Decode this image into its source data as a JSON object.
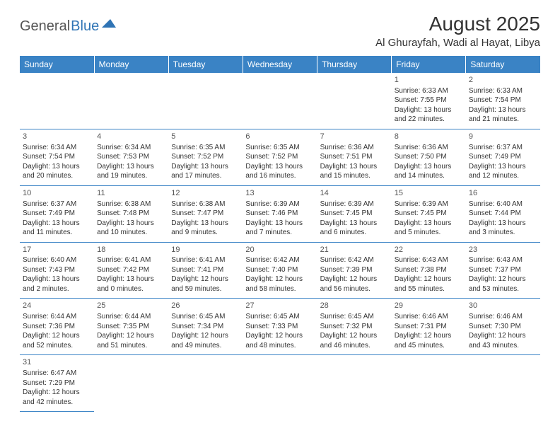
{
  "logo": {
    "word1": "General",
    "word2": "Blue",
    "color1": "#555555",
    "color2": "#2f74b5",
    "triangle_color": "#2f74b5"
  },
  "title": "August 2025",
  "location": "Al Ghurayfah, Wadi al Hayat, Libya",
  "header_bg": "#3a83c5",
  "header_fg": "#ffffff",
  "border_color": "#3a83c5",
  "text_color": "#333333",
  "day_headers": [
    "Sunday",
    "Monday",
    "Tuesday",
    "Wednesday",
    "Thursday",
    "Friday",
    "Saturday"
  ],
  "weeks": [
    [
      null,
      null,
      null,
      null,
      null,
      {
        "d": "1",
        "sr": "Sunrise: 6:33 AM",
        "ss": "Sunset: 7:55 PM",
        "dl1": "Daylight: 13 hours",
        "dl2": "and 22 minutes."
      },
      {
        "d": "2",
        "sr": "Sunrise: 6:33 AM",
        "ss": "Sunset: 7:54 PM",
        "dl1": "Daylight: 13 hours",
        "dl2": "and 21 minutes."
      }
    ],
    [
      {
        "d": "3",
        "sr": "Sunrise: 6:34 AM",
        "ss": "Sunset: 7:54 PM",
        "dl1": "Daylight: 13 hours",
        "dl2": "and 20 minutes."
      },
      {
        "d": "4",
        "sr": "Sunrise: 6:34 AM",
        "ss": "Sunset: 7:53 PM",
        "dl1": "Daylight: 13 hours",
        "dl2": "and 19 minutes."
      },
      {
        "d": "5",
        "sr": "Sunrise: 6:35 AM",
        "ss": "Sunset: 7:52 PM",
        "dl1": "Daylight: 13 hours",
        "dl2": "and 17 minutes."
      },
      {
        "d": "6",
        "sr": "Sunrise: 6:35 AM",
        "ss": "Sunset: 7:52 PM",
        "dl1": "Daylight: 13 hours",
        "dl2": "and 16 minutes."
      },
      {
        "d": "7",
        "sr": "Sunrise: 6:36 AM",
        "ss": "Sunset: 7:51 PM",
        "dl1": "Daylight: 13 hours",
        "dl2": "and 15 minutes."
      },
      {
        "d": "8",
        "sr": "Sunrise: 6:36 AM",
        "ss": "Sunset: 7:50 PM",
        "dl1": "Daylight: 13 hours",
        "dl2": "and 14 minutes."
      },
      {
        "d": "9",
        "sr": "Sunrise: 6:37 AM",
        "ss": "Sunset: 7:49 PM",
        "dl1": "Daylight: 13 hours",
        "dl2": "and 12 minutes."
      }
    ],
    [
      {
        "d": "10",
        "sr": "Sunrise: 6:37 AM",
        "ss": "Sunset: 7:49 PM",
        "dl1": "Daylight: 13 hours",
        "dl2": "and 11 minutes."
      },
      {
        "d": "11",
        "sr": "Sunrise: 6:38 AM",
        "ss": "Sunset: 7:48 PM",
        "dl1": "Daylight: 13 hours",
        "dl2": "and 10 minutes."
      },
      {
        "d": "12",
        "sr": "Sunrise: 6:38 AM",
        "ss": "Sunset: 7:47 PM",
        "dl1": "Daylight: 13 hours",
        "dl2": "and 9 minutes."
      },
      {
        "d": "13",
        "sr": "Sunrise: 6:39 AM",
        "ss": "Sunset: 7:46 PM",
        "dl1": "Daylight: 13 hours",
        "dl2": "and 7 minutes."
      },
      {
        "d": "14",
        "sr": "Sunrise: 6:39 AM",
        "ss": "Sunset: 7:45 PM",
        "dl1": "Daylight: 13 hours",
        "dl2": "and 6 minutes."
      },
      {
        "d": "15",
        "sr": "Sunrise: 6:39 AM",
        "ss": "Sunset: 7:45 PM",
        "dl1": "Daylight: 13 hours",
        "dl2": "and 5 minutes."
      },
      {
        "d": "16",
        "sr": "Sunrise: 6:40 AM",
        "ss": "Sunset: 7:44 PM",
        "dl1": "Daylight: 13 hours",
        "dl2": "and 3 minutes."
      }
    ],
    [
      {
        "d": "17",
        "sr": "Sunrise: 6:40 AM",
        "ss": "Sunset: 7:43 PM",
        "dl1": "Daylight: 13 hours",
        "dl2": "and 2 minutes."
      },
      {
        "d": "18",
        "sr": "Sunrise: 6:41 AM",
        "ss": "Sunset: 7:42 PM",
        "dl1": "Daylight: 13 hours",
        "dl2": "and 0 minutes."
      },
      {
        "d": "19",
        "sr": "Sunrise: 6:41 AM",
        "ss": "Sunset: 7:41 PM",
        "dl1": "Daylight: 12 hours",
        "dl2": "and 59 minutes."
      },
      {
        "d": "20",
        "sr": "Sunrise: 6:42 AM",
        "ss": "Sunset: 7:40 PM",
        "dl1": "Daylight: 12 hours",
        "dl2": "and 58 minutes."
      },
      {
        "d": "21",
        "sr": "Sunrise: 6:42 AM",
        "ss": "Sunset: 7:39 PM",
        "dl1": "Daylight: 12 hours",
        "dl2": "and 56 minutes."
      },
      {
        "d": "22",
        "sr": "Sunrise: 6:43 AM",
        "ss": "Sunset: 7:38 PM",
        "dl1": "Daylight: 12 hours",
        "dl2": "and 55 minutes."
      },
      {
        "d": "23",
        "sr": "Sunrise: 6:43 AM",
        "ss": "Sunset: 7:37 PM",
        "dl1": "Daylight: 12 hours",
        "dl2": "and 53 minutes."
      }
    ],
    [
      {
        "d": "24",
        "sr": "Sunrise: 6:44 AM",
        "ss": "Sunset: 7:36 PM",
        "dl1": "Daylight: 12 hours",
        "dl2": "and 52 minutes."
      },
      {
        "d": "25",
        "sr": "Sunrise: 6:44 AM",
        "ss": "Sunset: 7:35 PM",
        "dl1": "Daylight: 12 hours",
        "dl2": "and 51 minutes."
      },
      {
        "d": "26",
        "sr": "Sunrise: 6:45 AM",
        "ss": "Sunset: 7:34 PM",
        "dl1": "Daylight: 12 hours",
        "dl2": "and 49 minutes."
      },
      {
        "d": "27",
        "sr": "Sunrise: 6:45 AM",
        "ss": "Sunset: 7:33 PM",
        "dl1": "Daylight: 12 hours",
        "dl2": "and 48 minutes."
      },
      {
        "d": "28",
        "sr": "Sunrise: 6:45 AM",
        "ss": "Sunset: 7:32 PM",
        "dl1": "Daylight: 12 hours",
        "dl2": "and 46 minutes."
      },
      {
        "d": "29",
        "sr": "Sunrise: 6:46 AM",
        "ss": "Sunset: 7:31 PM",
        "dl1": "Daylight: 12 hours",
        "dl2": "and 45 minutes."
      },
      {
        "d": "30",
        "sr": "Sunrise: 6:46 AM",
        "ss": "Sunset: 7:30 PM",
        "dl1": "Daylight: 12 hours",
        "dl2": "and 43 minutes."
      }
    ],
    [
      {
        "d": "31",
        "sr": "Sunrise: 6:47 AM",
        "ss": "Sunset: 7:29 PM",
        "dl1": "Daylight: 12 hours",
        "dl2": "and 42 minutes."
      },
      null,
      null,
      null,
      null,
      null,
      null
    ]
  ]
}
